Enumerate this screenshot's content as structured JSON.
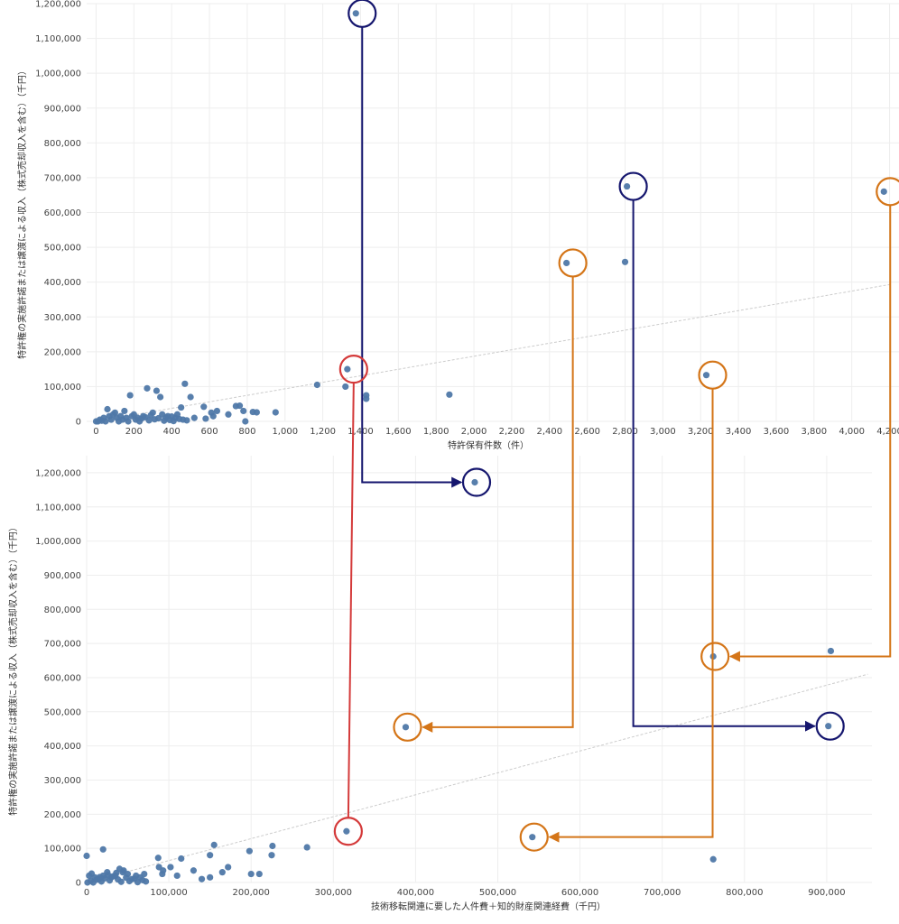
{
  "chart_data": [
    {
      "type": "scatter",
      "id": "top",
      "title": "",
      "xlabel": "特許保有件数（件）",
      "ylabel": "特許権の実施許諾または譲渡による収入（株式売却収入を含む）（千円）",
      "xlim": [
        -50,
        4250
      ],
      "ylim": [
        0,
        1200000
      ],
      "xticks": [
        0,
        200,
        400,
        600,
        800,
        1000,
        1200,
        1400,
        1600,
        1800,
        2000,
        2200,
        2400,
        2600,
        2800,
        3000,
        3200,
        3400,
        3600,
        3800,
        4000,
        4200
      ],
      "xtick_labels": [
        "0",
        "200",
        "400",
        "600",
        "800",
        "1,000",
        "1,200",
        "1,400",
        "1,600",
        "1,800",
        "2,000",
        "2,200",
        "2,400",
        "2,600",
        "2,800",
        "3,000",
        "3,200",
        "3,400",
        "3,600",
        "3,800",
        "4,000",
        "4,200"
      ],
      "yticks": [
        0,
        100000,
        200000,
        300000,
        400000,
        500000,
        600000,
        700000,
        800000,
        900000,
        1000000,
        1100000,
        1200000
      ],
      "ytick_labels": [
        "0",
        "100,000",
        "200,000",
        "300,000",
        "400,000",
        "500,000",
        "600,000",
        "700,000",
        "800,000",
        "900,000",
        "1,000,000",
        "1,100,000",
        "1,200,000"
      ],
      "grid": true,
      "trend": [
        [
          0,
          0
        ],
        [
          4200,
          393000
        ]
      ],
      "points": [
        [
          1375,
          1172000
        ],
        [
          2810,
          675000
        ],
        [
          4170,
          660000
        ],
        [
          2490,
          455000
        ],
        [
          2800,
          458000
        ],
        [
          3230,
          133000
        ],
        [
          1330,
          150000
        ],
        [
          1170,
          105000
        ],
        [
          1320,
          100000
        ],
        [
          1430,
          75000
        ],
        [
          1430,
          65000
        ],
        [
          1870,
          77000
        ],
        [
          470,
          108000
        ],
        [
          270,
          95000
        ],
        [
          320,
          88000
        ],
        [
          180,
          75000
        ],
        [
          340,
          70000
        ],
        [
          500,
          70000
        ],
        [
          760,
          45000
        ],
        [
          740,
          44000
        ],
        [
          570,
          42000
        ],
        [
          450,
          40000
        ],
        [
          780,
          30000
        ],
        [
          640,
          30000
        ],
        [
          830,
          27000
        ],
        [
          850,
          26000
        ],
        [
          950,
          26000
        ],
        [
          610,
          25000
        ],
        [
          60,
          35000
        ],
        [
          100,
          25000
        ],
        [
          150,
          30000
        ],
        [
          200,
          20000
        ],
        [
          250,
          15000
        ],
        [
          300,
          25000
        ],
        [
          350,
          20000
        ],
        [
          380,
          15000
        ],
        [
          420,
          10000
        ],
        [
          430,
          20000
        ],
        [
          460,
          5000
        ],
        [
          520,
          10000
        ],
        [
          580,
          8000
        ],
        [
          620,
          15000
        ],
        [
          700,
          20000
        ],
        [
          790,
          0
        ],
        [
          20,
          5000
        ],
        [
          40,
          10000
        ],
        [
          50,
          0
        ],
        [
          70,
          15000
        ],
        [
          80,
          5000
        ],
        [
          90,
          20000
        ],
        [
          110,
          10000
        ],
        [
          120,
          0
        ],
        [
          130,
          15000
        ],
        [
          140,
          5000
        ],
        [
          160,
          10000
        ],
        [
          170,
          0
        ],
        [
          190,
          15000
        ],
        [
          210,
          5000
        ],
        [
          220,
          10000
        ],
        [
          230,
          0
        ],
        [
          240,
          8000
        ],
        [
          260,
          12000
        ],
        [
          280,
          3000
        ],
        [
          290,
          18000
        ],
        [
          310,
          6000
        ],
        [
          330,
          9000
        ],
        [
          360,
          2000
        ],
        [
          370,
          11000
        ],
        [
          390,
          4000
        ],
        [
          400,
          14000
        ],
        [
          410,
          1000
        ],
        [
          440,
          7000
        ],
        [
          480,
          3000
        ],
        [
          30,
          2000
        ],
        [
          10,
          0
        ],
        [
          0,
          0
        ]
      ]
    },
    {
      "type": "scatter",
      "id": "bottom",
      "title": "",
      "xlabel": "技術移転関連に要した人件費＋知的財産関連経費（千円）",
      "ylabel": "特許権の実施許諾または譲渡による収入（株式売却収入を含む）（千円）",
      "xlim": [
        0,
        955000
      ],
      "ylim": [
        0,
        1250000
      ],
      "xticks": [
        0,
        100000,
        200000,
        300000,
        400000,
        500000,
        600000,
        700000,
        800000,
        900000
      ],
      "xtick_labels": [
        "0",
        "100,000",
        "200,000",
        "300,000",
        "400,000",
        "500,000",
        "600,000",
        "700,000",
        "800,000",
        "900,000"
      ],
      "yticks": [
        0,
        100000,
        200000,
        300000,
        400000,
        500000,
        600000,
        700000,
        800000,
        900000,
        1000000,
        1100000,
        1200000
      ],
      "ytick_labels": [
        "0",
        "100,000",
        "200,000",
        "300,000",
        "400,000",
        "500,000",
        "600,000",
        "700,000",
        "800,000",
        "900,000",
        "1,000,000",
        "1,100,000",
        "1,200,000"
      ],
      "grid": true,
      "trend": [
        [
          0,
          0
        ],
        [
          950000,
          610000
        ]
      ],
      "points": [
        [
          472000,
          1172000
        ],
        [
          905000,
          678000
        ],
        [
          762000,
          662000
        ],
        [
          388000,
          455000
        ],
        [
          902000,
          458000
        ],
        [
          542000,
          133000
        ],
        [
          316000,
          150000
        ],
        [
          762000,
          68000
        ],
        [
          268000,
          103000
        ],
        [
          226000,
          107000
        ],
        [
          225000,
          80000
        ],
        [
          198000,
          92000
        ],
        [
          155000,
          110000
        ],
        [
          150000,
          80000
        ],
        [
          115000,
          70000
        ],
        [
          87000,
          72000
        ],
        [
          102000,
          45000
        ],
        [
          88000,
          45000
        ],
        [
          20000,
          97000
        ],
        [
          0,
          78000
        ],
        [
          210000,
          25000
        ],
        [
          200000,
          25000
        ],
        [
          172000,
          45000
        ],
        [
          165000,
          30000
        ],
        [
          150000,
          15000
        ],
        [
          140000,
          10000
        ],
        [
          130000,
          35000
        ],
        [
          110000,
          20000
        ],
        [
          92000,
          25000
        ],
        [
          93000,
          35000
        ],
        [
          70000,
          25000
        ],
        [
          65000,
          15000
        ],
        [
          60000,
          20000
        ],
        [
          55000,
          10000
        ],
        [
          50000,
          25000
        ],
        [
          45000,
          35000
        ],
        [
          40000,
          40000
        ],
        [
          35000,
          20000
        ],
        [
          30000,
          15000
        ],
        [
          25000,
          30000
        ],
        [
          20000,
          20000
        ],
        [
          15000,
          10000
        ],
        [
          10000,
          15000
        ],
        [
          5000,
          5000
        ],
        [
          3000,
          20000
        ],
        [
          8000,
          0
        ],
        [
          12000,
          8000
        ],
        [
          18000,
          3000
        ],
        [
          22000,
          12000
        ],
        [
          28000,
          6000
        ],
        [
          32000,
          18000
        ],
        [
          38000,
          9000
        ],
        [
          42000,
          2000
        ],
        [
          48000,
          14000
        ],
        [
          52000,
          4000
        ],
        [
          58000,
          11000
        ],
        [
          62000,
          1000
        ],
        [
          68000,
          7000
        ],
        [
          72000,
          3000
        ],
        [
          36000,
          28000
        ],
        [
          26000,
          22000
        ],
        [
          16000,
          16000
        ],
        [
          6000,
          26000
        ],
        [
          44000,
          30000
        ],
        [
          1000,
          0
        ]
      ]
    }
  ],
  "connectors": [
    {
      "color": "#15166e",
      "from": [
        1375,
        1172000
      ],
      "to": [
        472000,
        1172000
      ]
    },
    {
      "color": "#15166e",
      "from": [
        2810,
        675000
      ],
      "to": [
        902000,
        458000
      ]
    },
    {
      "color": "#d47518",
      "from": [
        4170,
        660000
      ],
      "to": [
        762000,
        662000
      ]
    },
    {
      "color": "#d47518",
      "from": [
        2490,
        455000
      ],
      "to": [
        388000,
        455000
      ]
    },
    {
      "color": "#d47518",
      "from": [
        3230,
        133000
      ],
      "to": [
        542000,
        133000
      ]
    },
    {
      "color": "#d43a3a",
      "from": [
        1330,
        150000
      ],
      "to": [
        316000,
        150000
      ]
    }
  ],
  "colors": {
    "point": "#4f78a8",
    "grid": "#eeeeee",
    "trend": "#cccccc",
    "navy": "#15166e",
    "orange": "#d47518",
    "red": "#d43a3a"
  }
}
